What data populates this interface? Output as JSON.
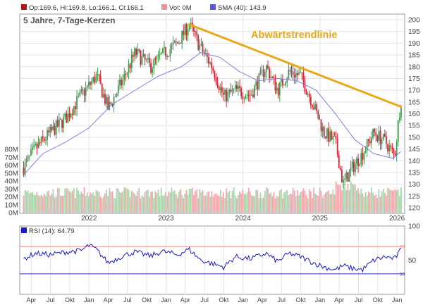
{
  "legend": {
    "ohlc": "Op:169.6, Hi:169.8, Lo:166.1, Cl:166.1",
    "volume": "Vol: 0M",
    "sma": "SMA (40): 143.9"
  },
  "colors": {
    "up": "#3f9d50",
    "down": "#c8283a",
    "vol_up": "#a9d6ab",
    "vol_down": "#f0a9b1",
    "sma": "#8080e0",
    "trendline": "#e8a818",
    "rsi": "#1a1ac8",
    "rsi_upper": "#f08080",
    "rsi_lower": "#3030d0",
    "grid": "#e4e4e4",
    "legend_ohlc_swatch": "#b01818",
    "legend_vol_swatch": "#e89898",
    "legend_sma_swatch": "#5a5ad8",
    "rsi_badge": "#1a1ac8"
  },
  "chart_data": [
    {
      "type": "candlestick",
      "title": "5 Jahre, 7-Tage-Kerzen",
      "annotation": "Abwärtstrendlinie",
      "x_tick_labels": [
        "2022",
        "2023",
        "2024",
        "2025",
        "2026"
      ],
      "x_ticks": [
        2022.0,
        2023.0,
        2024.0,
        2025.0,
        2026.0
      ],
      "xlim": [
        2021.1,
        2026.1
      ],
      "price_axis": {
        "ticks": [
          120,
          125,
          130,
          135,
          140,
          145,
          150,
          155,
          160,
          165,
          170,
          175,
          180,
          185,
          190,
          195,
          200
        ],
        "ylim": [
          120,
          200
        ]
      },
      "volume_axis": {
        "tick_labels": [
          "0M",
          "10M",
          "20M",
          "30M",
          "40M",
          "50M",
          "60M",
          "70M",
          "80M"
        ],
        "ticks": [
          0,
          10,
          20,
          30,
          40,
          50,
          60,
          70,
          80
        ],
        "ylim": [
          0,
          80
        ]
      },
      "price_anchors": [
        [
          2021.15,
          137
        ],
        [
          2021.3,
          145
        ],
        [
          2021.5,
          152
        ],
        [
          2021.7,
          158
        ],
        [
          2021.9,
          168
        ],
        [
          2022.1,
          176
        ],
        [
          2022.25,
          162
        ],
        [
          2022.45,
          175
        ],
        [
          2022.6,
          186
        ],
        [
          2022.8,
          180
        ],
        [
          2022.95,
          185
        ],
        [
          2023.15,
          190
        ],
        [
          2023.3,
          198
        ],
        [
          2023.45,
          188
        ],
        [
          2023.6,
          180
        ],
        [
          2023.75,
          167
        ],
        [
          2023.9,
          170
        ],
        [
          2024.1,
          168
        ],
        [
          2024.3,
          180
        ],
        [
          2024.45,
          170
        ],
        [
          2024.6,
          178
        ],
        [
          2024.75,
          176
        ],
        [
          2024.9,
          165
        ],
        [
          2025.05,
          152
        ],
        [
          2025.2,
          148
        ],
        [
          2025.3,
          130
        ],
        [
          2025.42,
          137
        ],
        [
          2025.55,
          143
        ],
        [
          2025.7,
          152
        ],
        [
          2025.85,
          148
        ],
        [
          2025.97,
          142
        ],
        [
          2026.05,
          166
        ]
      ],
      "series": [
        {
          "name": "SMA (40)",
          "x": [
            2021.15,
            2021.4,
            2021.7,
            2022.0,
            2022.3,
            2022.6,
            2022.9,
            2023.2,
            2023.45,
            2023.7,
            2023.95,
            2024.2,
            2024.45,
            2024.7,
            2024.95,
            2025.2,
            2025.45,
            2025.7,
            2025.95,
            2026.05
          ],
          "y": [
            134,
            143,
            148,
            154,
            164,
            170,
            176,
            180,
            186,
            184,
            178,
            174,
            175,
            174,
            170,
            160,
            149,
            143,
            141,
            143.9
          ]
        },
        {
          "name": "Abwärtstrendlinie",
          "x": [
            2023.3,
            2026.05
          ],
          "y": [
            198,
            163
          ]
        }
      ]
    },
    {
      "type": "line",
      "title": "RSI (14): 64.79",
      "ylim": [
        0,
        100
      ],
      "y_ticks": [
        50,
        100
      ],
      "levels": [
        {
          "value": 70,
          "label": "70"
        },
        {
          "value": 30,
          "label": "30"
        }
      ],
      "x_tick_labels": [
        "Apr",
        "Jul",
        "Okt",
        "Jan",
        "Apr",
        "Jul",
        "Okt",
        "Jan",
        "Apr",
        "Jul",
        "Okt",
        "Jan",
        "Apr",
        "Jul",
        "Okt",
        "Jan",
        "Apr",
        "Jul",
        "Okt",
        "Jan"
      ],
      "x_ticks": [
        2021.25,
        2021.5,
        2021.75,
        2022.0,
        2022.25,
        2022.5,
        2022.75,
        2023.0,
        2023.25,
        2023.5,
        2023.75,
        2024.0,
        2024.25,
        2024.5,
        2024.75,
        2025.0,
        2025.25,
        2025.5,
        2025.75,
        2026.0
      ],
      "anchors": [
        [
          2021.15,
          52
        ],
        [
          2021.3,
          60
        ],
        [
          2021.5,
          58
        ],
        [
          2021.7,
          62
        ],
        [
          2021.9,
          64
        ],
        [
          2022.0,
          72
        ],
        [
          2022.1,
          65
        ],
        [
          2022.25,
          46
        ],
        [
          2022.45,
          57
        ],
        [
          2022.6,
          62
        ],
        [
          2022.8,
          56
        ],
        [
          2022.95,
          63
        ],
        [
          2023.15,
          58
        ],
        [
          2023.3,
          66
        ],
        [
          2023.45,
          50
        ],
        [
          2023.6,
          45
        ],
        [
          2023.75,
          40
        ],
        [
          2023.9,
          55
        ],
        [
          2024.1,
          52
        ],
        [
          2024.3,
          60
        ],
        [
          2024.45,
          48
        ],
        [
          2024.6,
          60
        ],
        [
          2024.75,
          55
        ],
        [
          2024.9,
          47
        ],
        [
          2025.05,
          40
        ],
        [
          2025.2,
          36
        ],
        [
          2025.3,
          42
        ],
        [
          2025.42,
          38
        ],
        [
          2025.55,
          36
        ],
        [
          2025.7,
          50
        ],
        [
          2025.85,
          55
        ],
        [
          2025.97,
          52
        ],
        [
          2026.05,
          64.79
        ]
      ]
    }
  ]
}
